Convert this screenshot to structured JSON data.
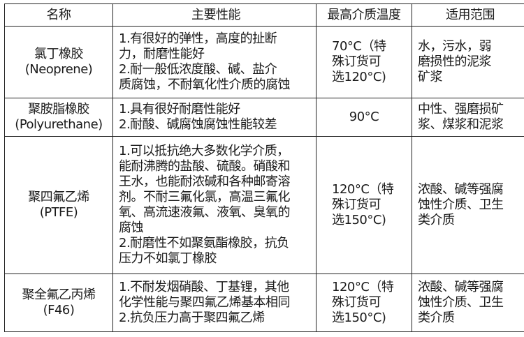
{
  "table": {
    "headers": [
      "名称",
      "主要性能",
      "最高介质温度",
      "适用范围"
    ],
    "rows": [
      {
        "name": [
          "氯丁橡胶",
          "(Neoprene)"
        ],
        "performance": [
          "1.有很好的弹性，高度的扯断",
          "力，耐磨性能好",
          "2.耐一般低浓度酸、碱、盐介",
          "质腐蚀，不耐氧化性介质的腐蚀"
        ],
        "max_temp": [
          "70°C（特",
          "殊订货可",
          "选120°C)"
        ],
        "application": [
          "水，污水，弱",
          "磨损性的泥浆",
          "矿浆"
        ]
      },
      {
        "name": [
          "聚胺脂橡胶",
          "(Polyurethane)"
        ],
        "performance": [
          "1.具有很好耐磨性能好",
          "2.耐酸、碱腐蚀腐蚀性能较差"
        ],
        "max_temp": [
          "90°C"
        ],
        "application": [
          "中性、强磨损矿",
          "浆、煤浆和泥浆"
        ]
      },
      {
        "name": [
          "聚四氟乙烯",
          "(PTFE)"
        ],
        "performance": [
          "1.可以抵抗绝大多数化学介质，",
          "能耐沸腾的盐酸、硫酸。硝酸和",
          "王水，也能耐浓碱和各种邮寄溶",
          "剂。不耐三氟化氯，高温三氟化",
          "氧、高流速液氟、液氧、臭氧的",
          "腐蚀",
          "2.耐磨性不如聚氨酯橡胶，抗负",
          "压力不如氯丁橡胶"
        ],
        "max_temp": [
          "120°C（特",
          "殊订货可",
          "选150°C)"
        ],
        "application": [
          "浓酸、碱等强腐",
          "蚀性介质、卫生",
          "类介质"
        ]
      },
      {
        "name": [
          "聚全氟乙丙烯",
          "(F46)"
        ],
        "performance": [
          "1.不耐发烟硝酸、丁基锂，其他",
          "化学性能与聚四氟乙烯基本相同",
          "2.抗负压力高于聚四氟乙烯"
        ],
        "max_temp": [
          "120°C（特",
          "殊订货可",
          "选150°C)"
        ],
        "application": [
          "浓酸、碱等强腐",
          "蚀性介质、卫生",
          "类介质"
        ]
      }
    ]
  }
}
